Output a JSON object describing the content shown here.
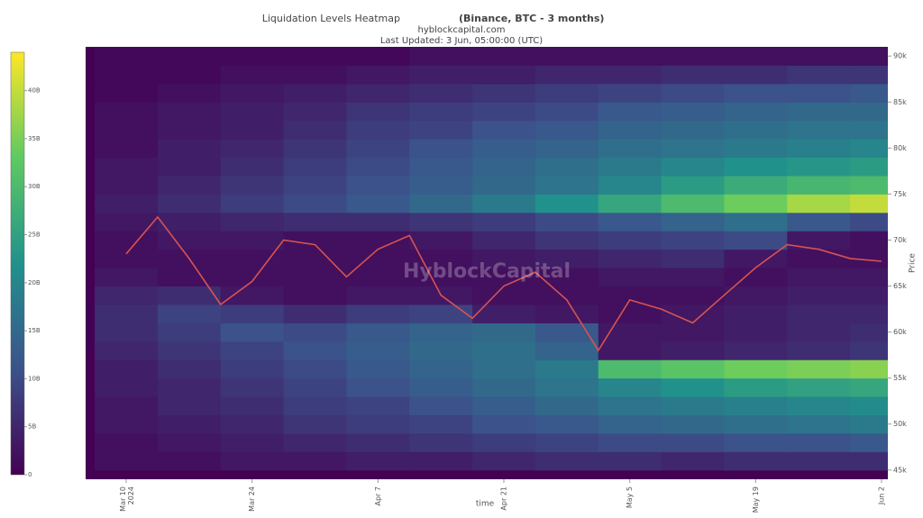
{
  "chart_data": {
    "type": "heatmap",
    "title": "Liquidation Levels Heatmap",
    "title_bold": "(Binance, BTC - 3 months)",
    "subtitle": "hyblockcapital.com",
    "updated": "Last Updated: 3 Jun, 05:00:00 (UTC)",
    "watermark": "HyblockCapital",
    "x_label": "time",
    "y_label": "Price",
    "categories": [
      "Mar 10\n2024",
      null,
      null,
      null,
      "Mar 24",
      null,
      null,
      null,
      "Apr 7",
      null,
      null,
      null,
      "Apr 21",
      null,
      null,
      null,
      "May 5",
      null,
      null,
      null,
      "May 19",
      null,
      null,
      null,
      "Jun 2"
    ],
    "series": [
      {
        "name": "BTC price",
        "color": "#d9534f",
        "values": [
          68500,
          72500,
          68000,
          63000,
          65500,
          70000,
          69500,
          66000,
          69000,
          70500,
          64000,
          61500,
          65000,
          66500,
          63500,
          58000,
          63500,
          62500,
          61000,
          64000,
          67000,
          69500,
          69000,
          68000,
          67700
        ]
      }
    ],
    "ylim": [
      44000,
      91000
    ],
    "yticks": [
      {
        "value": 45000,
        "label": "45k"
      },
      {
        "value": 50000,
        "label": "50k"
      },
      {
        "value": 55000,
        "label": "55k"
      },
      {
        "value": 60000,
        "label": "60k"
      },
      {
        "value": 65000,
        "label": "65k"
      },
      {
        "value": 70000,
        "label": "70k"
      },
      {
        "value": 75000,
        "label": "75k"
      },
      {
        "value": 80000,
        "label": "80k"
      },
      {
        "value": 85000,
        "label": "85k"
      },
      {
        "value": 90000,
        "label": "90k"
      }
    ],
    "heatmap": {
      "levels": [
        46000,
        48000,
        50000,
        52000,
        54000,
        56000,
        58000,
        60000,
        62000,
        64000,
        66000,
        68000,
        70000,
        72000,
        74000,
        76000,
        78000,
        80000,
        82000,
        84000,
        86000,
        88000,
        90000
      ],
      "z": [
        [
          2,
          2,
          3,
          3,
          4,
          4,
          5,
          6,
          6,
          5,
          6,
          6,
          6
        ],
        [
          2,
          3,
          4,
          5,
          6,
          7,
          8,
          9,
          10,
          10,
          11,
          11,
          12
        ],
        [
          3,
          4,
          5,
          7,
          8,
          9,
          11,
          12,
          14,
          15,
          16,
          17,
          18
        ],
        [
          3,
          5,
          6,
          8,
          9,
          11,
          13,
          15,
          17,
          18,
          19,
          20,
          21
        ],
        [
          4,
          5,
          7,
          9,
          11,
          13,
          15,
          17,
          20,
          22,
          24,
          25,
          26
        ],
        [
          4,
          6,
          8,
          10,
          12,
          14,
          16,
          18,
          30,
          32,
          34,
          35,
          36
        ],
        [
          5,
          7,
          9,
          11,
          13,
          15,
          16,
          14,
          3,
          4,
          5,
          6,
          7
        ],
        [
          6,
          8,
          11,
          10,
          12,
          14,
          15,
          12,
          3,
          3,
          4,
          5,
          6
        ],
        [
          6,
          9,
          8,
          6,
          8,
          9,
          4,
          3,
          2,
          3,
          4,
          5,
          5
        ],
        [
          5,
          6,
          3,
          2,
          3,
          3,
          2,
          2,
          2,
          2,
          3,
          4,
          4
        ],
        [
          3,
          2,
          2,
          2,
          2,
          2,
          2,
          2,
          3,
          3,
          2,
          3,
          3
        ],
        [
          2,
          2,
          2,
          2,
          2,
          2,
          3,
          4,
          5,
          6,
          3,
          2,
          2
        ],
        [
          2,
          3,
          3,
          2,
          2,
          3,
          5,
          7,
          8,
          9,
          10,
          3,
          2
        ],
        [
          3,
          4,
          5,
          6,
          6,
          7,
          8,
          10,
          12,
          14,
          16,
          12,
          10
        ],
        [
          4,
          6,
          8,
          10,
          12,
          15,
          18,
          22,
          26,
          30,
          34,
          38,
          40
        ],
        [
          3,
          5,
          7,
          9,
          11,
          13,
          15,
          17,
          20,
          24,
          27,
          29,
          30
        ],
        [
          3,
          4,
          6,
          8,
          10,
          12,
          14,
          16,
          18,
          20,
          22,
          23,
          24
        ],
        [
          2,
          4,
          5,
          7,
          9,
          11,
          13,
          14,
          16,
          17,
          18,
          19,
          20
        ],
        [
          2,
          3,
          4,
          6,
          8,
          9,
          11,
          12,
          14,
          15,
          16,
          17,
          17
        ],
        [
          2,
          3,
          4,
          5,
          7,
          8,
          9,
          10,
          12,
          13,
          14,
          15,
          15
        ],
        [
          1,
          2,
          3,
          4,
          5,
          6,
          7,
          8,
          9,
          10,
          11,
          11,
          12
        ],
        [
          1,
          1,
          2,
          2,
          3,
          4,
          4,
          5,
          5,
          6,
          6,
          7,
          7
        ],
        [
          1,
          1,
          1,
          1,
          1,
          2,
          2,
          2,
          2,
          2,
          2,
          2,
          2
        ]
      ]
    },
    "zlim": [
      0,
      44
    ],
    "zticks": [
      0,
      {
        "value": 5,
        "label": "5B"
      },
      {
        "value": 10,
        "label": "10B"
      },
      {
        "value": 15,
        "label": "15B"
      },
      {
        "value": 20,
        "label": "20B"
      },
      {
        "value": 25,
        "label": "25B"
      },
      {
        "value": 30,
        "label": "30B"
      },
      {
        "value": 35,
        "label": "35B"
      },
      {
        "value": 40,
        "label": "40B"
      }
    ],
    "colorscale": [
      "#440154",
      "#3b528b",
      "#21918c",
      "#5ec962",
      "#fde725"
    ]
  }
}
